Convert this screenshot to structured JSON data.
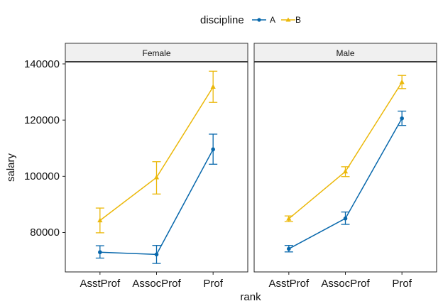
{
  "legend": {
    "title": "discipline",
    "items": [
      {
        "label": "A",
        "color": "#0868AC",
        "shape": "circle"
      },
      {
        "label": "B",
        "color": "#EBB80A",
        "shape": "triangle"
      }
    ]
  },
  "axes": {
    "xlabel": "rank",
    "ylabel": "salary",
    "yticks": [
      "80000",
      "100000",
      "120000",
      "140000"
    ]
  },
  "chart_data": {
    "type": "line",
    "x_type": "categorical",
    "categories": [
      "AsstProf",
      "AssocProf",
      "Prof"
    ],
    "xlabel": "rank",
    "ylabel": "salary",
    "ylim": [
      66000,
      146000
    ],
    "yticks": [
      80000,
      100000,
      120000,
      140000
    ],
    "error_bars": true,
    "grid": false,
    "legend_position": "top",
    "legend_title": "discipline",
    "facet": "sex",
    "panels": [
      {
        "label": "Female",
        "series": [
          {
            "name": "A",
            "color": "#0868AC",
            "marker": "circle",
            "values": [
              73000,
              72200,
              109600
            ],
            "lower": [
              70900,
              69000,
              104300
            ],
            "upper": [
              75300,
              75400,
              115000
            ]
          },
          {
            "name": "B",
            "color": "#EBB80A",
            "marker": "triangle",
            "values": [
              84300,
              99600,
              131800
            ],
            "lower": [
              79900,
              93700,
              126300
            ],
            "upper": [
              88700,
              105200,
              137400
            ]
          }
        ]
      },
      {
        "label": "Male",
        "series": [
          {
            "name": "A",
            "color": "#0868AC",
            "marker": "circle",
            "values": [
              74200,
              85000,
              120600
            ],
            "lower": [
              73100,
              82900,
              118100
            ],
            "upper": [
              75400,
              87300,
              123200
            ]
          },
          {
            "name": "B",
            "color": "#EBB80A",
            "marker": "triangle",
            "values": [
              84900,
              101700,
              133500
            ],
            "lower": [
              83900,
              99900,
              131200
            ],
            "upper": [
              85900,
              103400,
              135900
            ]
          }
        ]
      }
    ]
  }
}
